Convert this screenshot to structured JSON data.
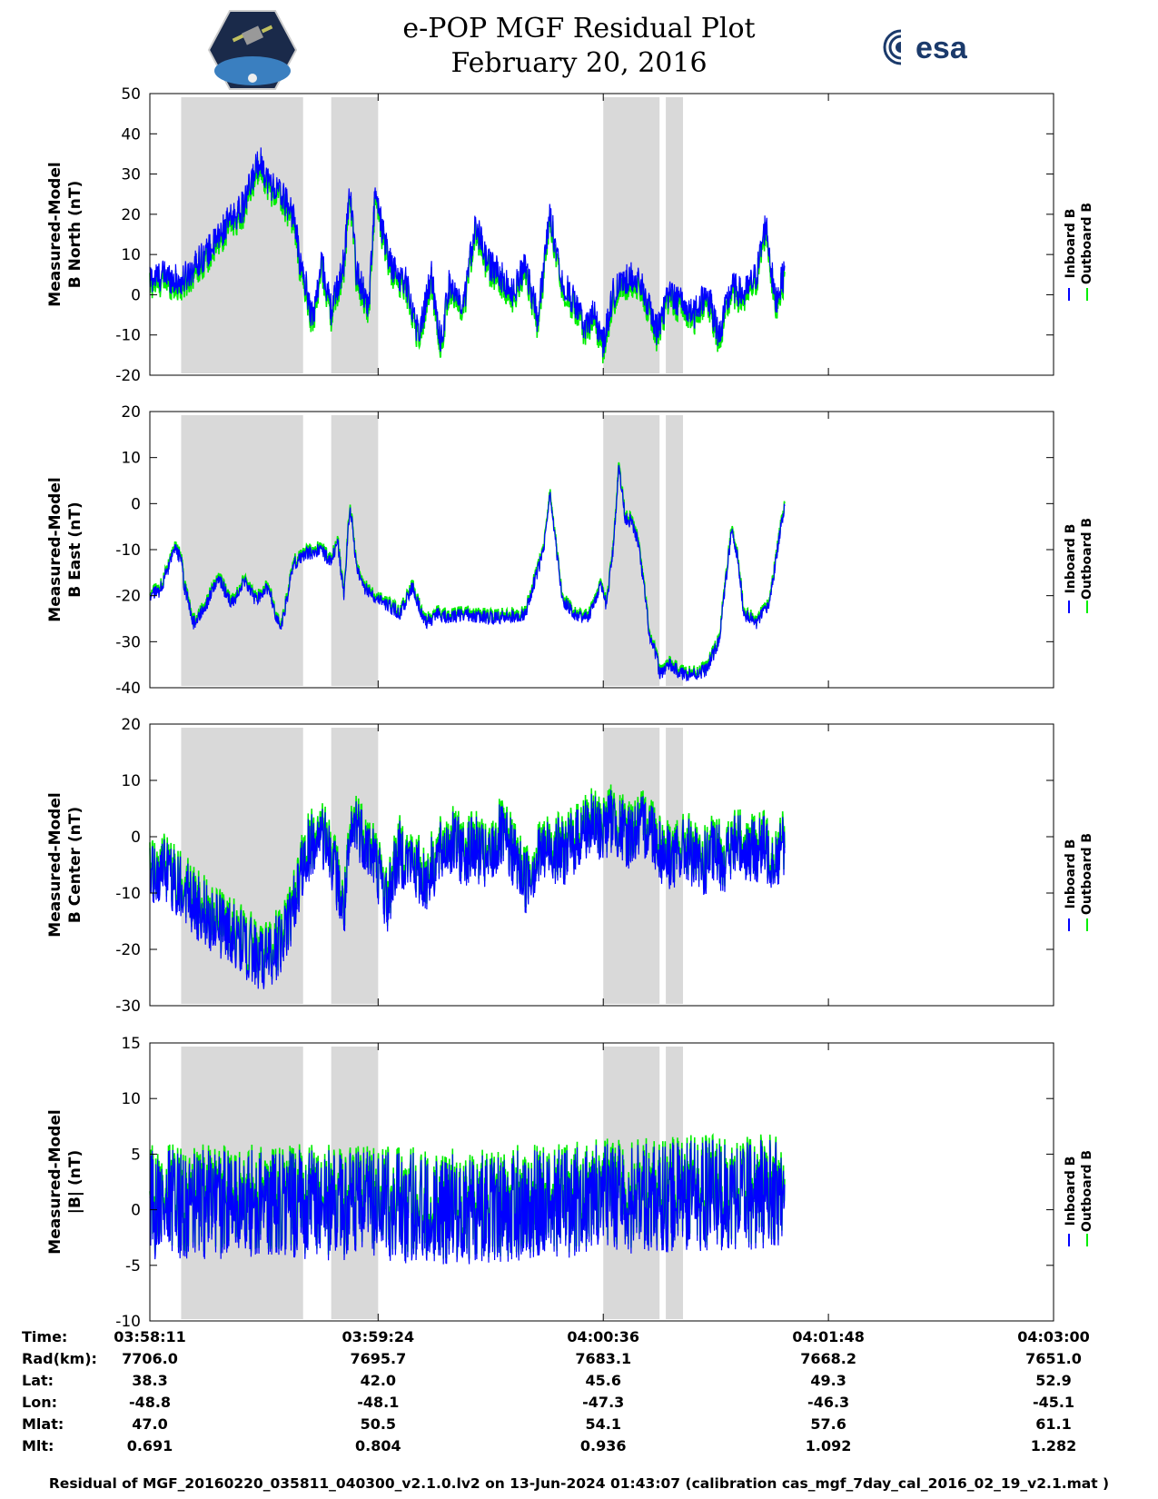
{
  "header": {
    "title_line1": "e-POP MGF Residual Plot",
    "title_line2": "February 20, 2016",
    "logo_left": "Cassiope",
    "logo_right": "esa"
  },
  "legend": {
    "inboard": "Inboard B",
    "outboard": "Outboard B",
    "inboard_color": "#0000ff",
    "outboard_color": "#00ee00"
  },
  "shade_color": "#d9d9d9",
  "chart_data": [
    {
      "type": "line",
      "ylabel_line1": "Measured-Model",
      "ylabel_line2": "B North (nT)",
      "ylim": [
        -20,
        50
      ],
      "yticks": [
        -20,
        -10,
        0,
        10,
        20,
        30,
        40,
        50
      ],
      "shaded_ranges_s": [
        [
          10,
          49
        ],
        [
          58,
          73
        ],
        [
          145,
          163
        ],
        [
          165,
          170.5
        ]
      ],
      "series": [
        {
          "name": "Inboard B",
          "color": "#0000ff",
          "x_s": [
            0,
            5,
            10,
            15,
            20,
            25,
            30,
            35,
            38,
            42,
            46,
            48,
            50,
            52,
            55,
            58,
            62,
            64,
            66,
            70,
            72,
            76,
            78,
            82,
            86,
            90,
            93,
            96,
            100,
            104,
            108,
            112,
            116,
            120,
            124,
            128,
            132,
            136,
            139,
            142,
            145,
            148,
            151,
            154,
            158,
            162,
            166,
            170,
            174,
            178,
            182,
            186,
            190,
            194,
            197,
            200,
            203
          ],
          "y": [
            4,
            5,
            3,
            8,
            12,
            18,
            22,
            34,
            28,
            25,
            20,
            8,
            2,
            -6,
            8,
            -4,
            8,
            27,
            6,
            -3,
            25,
            10,
            6,
            3,
            -10,
            5,
            -12,
            4,
            -5,
            18,
            8,
            5,
            0,
            8,
            -6,
            20,
            3,
            -2,
            -8,
            -5,
            -12,
            0,
            3,
            5,
            1,
            -9,
            0,
            -2,
            -5,
            1,
            -10,
            2,
            0,
            5,
            18,
            -2,
            6
          ],
          "noise_nT": 4
        },
        {
          "name": "Outboard B",
          "color": "#00ee00",
          "x_s": [
            0,
            40,
            80,
            120,
            160,
            203
          ],
          "y": [
            4,
            24,
            2,
            6,
            -3,
            5
          ],
          "offset_from_inboard_nT": -1.5
        }
      ]
    },
    {
      "type": "line",
      "ylabel_line1": "Measured-Model",
      "ylabel_line2": "B East (nT)",
      "ylim": [
        -40,
        20
      ],
      "yticks": [
        -40,
        -30,
        -20,
        -10,
        0,
        10,
        20
      ],
      "shaded_ranges_s": [
        [
          10,
          49
        ],
        [
          58,
          73
        ],
        [
          145,
          163
        ],
        [
          165,
          170.5
        ]
      ],
      "series": [
        {
          "name": "Inboard B",
          "color": "#0000ff",
          "x_s": [
            0,
            3,
            6,
            8,
            10,
            11,
            14,
            18,
            22,
            26,
            30,
            34,
            38,
            40,
            42,
            46,
            50,
            55,
            58,
            60,
            62,
            64,
            66,
            68,
            72,
            76,
            80,
            84,
            88,
            92,
            96,
            100,
            110,
            120,
            126,
            128,
            130,
            132,
            136,
            140,
            144,
            146,
            148,
            150,
            152,
            154,
            156,
            158,
            160,
            162,
            163,
            166,
            170,
            175,
            178,
            182,
            184,
            186,
            188,
            190,
            194,
            198,
            203
          ],
          "y": [
            -20,
            -19,
            -14,
            -10,
            -12,
            -18,
            -26,
            -22,
            -16,
            -22,
            -17,
            -21,
            -18,
            -24,
            -27,
            -13,
            -11,
            -10,
            -13,
            -8,
            -20,
            0,
            -13,
            -18,
            -20,
            -22,
            -24,
            -18,
            -26,
            -24,
            -25,
            -24,
            -25,
            -24,
            -10,
            2,
            -10,
            -21,
            -24,
            -25,
            -18,
            -22,
            -11,
            8,
            -3,
            -4,
            -8,
            -18,
            -30,
            -33,
            -37,
            -35,
            -37,
            -37,
            -36,
            -30,
            -18,
            -6,
            -12,
            -24,
            -26,
            -22,
            0
          ],
          "noise_nT": 1.5
        },
        {
          "name": "Outboard B",
          "color": "#00ee00",
          "x_s": [
            0,
            100,
            203
          ],
          "y": [
            -20,
            -24,
            0
          ],
          "offset_from_inboard_nT": 0.6
        }
      ]
    },
    {
      "type": "line",
      "ylabel_line1": "Measured-Model",
      "ylabel_line2": "B Center (nT)",
      "ylim": [
        -30,
        20
      ],
      "yticks": [
        -30,
        -20,
        -10,
        0,
        10,
        20
      ],
      "shaded_ranges_s": [
        [
          10,
          49
        ],
        [
          58,
          73
        ],
        [
          145,
          163
        ],
        [
          165,
          170.5
        ]
      ],
      "series": [
        {
          "name": "Inboard B",
          "color": "#0000ff",
          "x_s": [
            0,
            4,
            8,
            12,
            16,
            20,
            24,
            28,
            32,
            36,
            40,
            44,
            46,
            48,
            50,
            54,
            58,
            60,
            62,
            64,
            66,
            68,
            72,
            76,
            78,
            80,
            84,
            88,
            92,
            96,
            100,
            104,
            108,
            112,
            116,
            120,
            124,
            128,
            132,
            136,
            140,
            144,
            148,
            152,
            156,
            160,
            164,
            168,
            172,
            176,
            180,
            184,
            188,
            192,
            196,
            200,
            203
          ],
          "y": [
            -8,
            -6,
            -8,
            -10,
            -13,
            -15,
            -16,
            -18,
            -20,
            -22,
            -20,
            -16,
            -12,
            -8,
            -3,
            0,
            -3,
            -8,
            -14,
            -2,
            3,
            0,
            -4,
            -12,
            -6,
            -3,
            -5,
            -8,
            -4,
            -1,
            -3,
            -2,
            -5,
            0,
            -3,
            -8,
            -4,
            -2,
            -3,
            -1,
            2,
            1,
            3,
            0,
            1,
            2,
            -3,
            -4,
            -2,
            -6,
            -3,
            -4,
            -1,
            -3,
            -2,
            -4,
            -1
          ],
          "noise_nT": 6
        },
        {
          "name": "Outboard B",
          "color": "#00ee00",
          "x_s": [
            0,
            100,
            203
          ],
          "y": [
            -8,
            -3,
            -1
          ],
          "offset_from_inboard_nT": 1
        }
      ]
    },
    {
      "type": "line",
      "ylabel_line1": "Measured-Model",
      "ylabel_line2": "|B| (nT)",
      "ylim": [
        -10,
        15
      ],
      "yticks": [
        -10,
        -5,
        0,
        5,
        10,
        15
      ],
      "shaded_ranges_s": [
        [
          10,
          49
        ],
        [
          58,
          73
        ],
        [
          145,
          163
        ],
        [
          165,
          170.5
        ]
      ],
      "series": [
        {
          "name": "Inboard B",
          "color": "#0000ff",
          "x_s": [
            0,
            50,
            100,
            150,
            203
          ],
          "y": [
            0.5,
            0.5,
            0,
            1,
            1.5
          ],
          "noise_nT": 5
        },
        {
          "name": "Outboard B",
          "color": "#00ee00",
          "x_s": [
            0,
            203
          ],
          "y": [
            0.5,
            1.5
          ],
          "offset_from_inboard_nT": 0.5
        }
      ]
    }
  ],
  "time_axis": {
    "tick_seconds": [
      0,
      73,
      145,
      217,
      289
    ],
    "xlim_seconds": [
      0,
      289
    ]
  },
  "orbit_table": {
    "labels": [
      "Time:",
      "Rad(km):",
      "Lat:",
      "Lon:",
      "Mlat:",
      "Mlt:"
    ],
    "columns": [
      {
        "Time": "03:58:11",
        "Rad": "7706.0",
        "Lat": "38.3",
        "Lon": "-48.8",
        "Mlat": "47.0",
        "Mlt": "0.691"
      },
      {
        "Time": "03:59:24",
        "Rad": "7695.7",
        "Lat": "42.0",
        "Lon": "-48.1",
        "Mlat": "50.5",
        "Mlt": "0.804"
      },
      {
        "Time": "04:00:36",
        "Rad": "7683.1",
        "Lat": "45.6",
        "Lon": "-47.3",
        "Mlat": "54.1",
        "Mlt": "0.936"
      },
      {
        "Time": "04:01:48",
        "Rad": "7668.2",
        "Lat": "49.3",
        "Lon": "-46.3",
        "Mlat": "57.6",
        "Mlt": "1.092"
      },
      {
        "Time": "04:03:00",
        "Rad": "7651.0",
        "Lat": "52.9",
        "Lon": "-45.1",
        "Mlat": "61.1",
        "Mlt": "1.282"
      }
    ]
  },
  "footer": "Residual of MGF_20160220_035811_040300_v2.1.0.lv2 on 13-Jun-2024 01:43:07 (calibration cas_mgf_7day_cal_2016_02_19_v2.1.mat )"
}
